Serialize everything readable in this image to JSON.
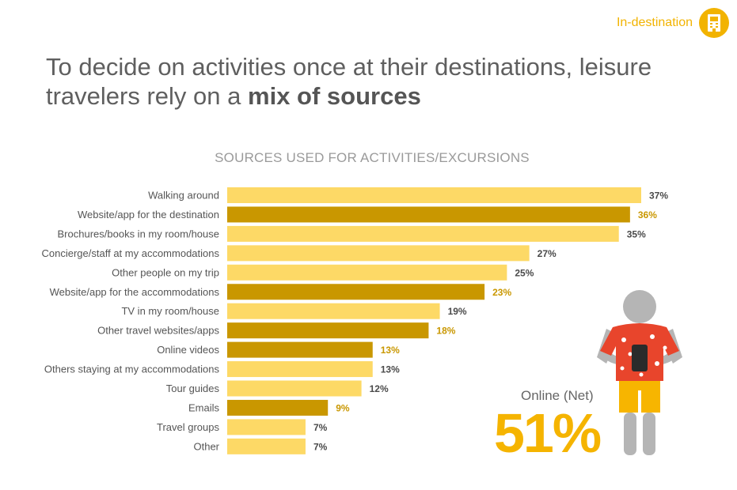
{
  "header": {
    "section_label": "In-destination",
    "section_icon": "hotel-building-icon"
  },
  "headline": {
    "text_regular": "To decide on activities once at their destinations, leisure travelers rely on a",
    "text_bold": "mix of sources"
  },
  "chart_data": {
    "type": "bar",
    "orientation": "horizontal",
    "title": "SOURCES USED FOR ACTIVITIES/EXCURSIONS",
    "categories": [
      "Walking around",
      "Website/app for the destination",
      "Brochures/books in my room/house",
      "Concierge/staff at my accommodations",
      "Other people on my trip",
      "Website/app for the accommodations",
      "TV in my room/house",
      "Other travel websites/apps",
      "Online videos",
      "Others staying at my accommodations",
      "Tour guides",
      "Emails",
      "Travel groups",
      "Other"
    ],
    "values": [
      37,
      36,
      35,
      27,
      25,
      23,
      19,
      18,
      13,
      13,
      12,
      9,
      7,
      7
    ],
    "value_labels": [
      "37%",
      "36%",
      "35%",
      "27%",
      "25%",
      "23%",
      "19%",
      "18%",
      "13%",
      "13%",
      "12%",
      "9%",
      "7%",
      "7%"
    ],
    "online": [
      false,
      true,
      false,
      false,
      false,
      true,
      false,
      true,
      true,
      false,
      false,
      true,
      false,
      false
    ],
    "colors": {
      "offline_bar": "#fdd966",
      "online_bar": "#c99700",
      "offline_label": "#4a4a4a",
      "online_label": "#c99700",
      "category_label": "#555555"
    },
    "xlim": [
      0,
      37
    ],
    "grid": false,
    "legend": "none"
  },
  "callout": {
    "label": "Online (Net)",
    "value": "51%"
  },
  "illustration": {
    "icon": "traveler-with-phone-icon",
    "colors": {
      "body": "#b5b5b5",
      "shirt": "#e8452c",
      "shorts": "#f7b500",
      "phone": "#2b2b2b",
      "flower": "#ffffff"
    }
  }
}
